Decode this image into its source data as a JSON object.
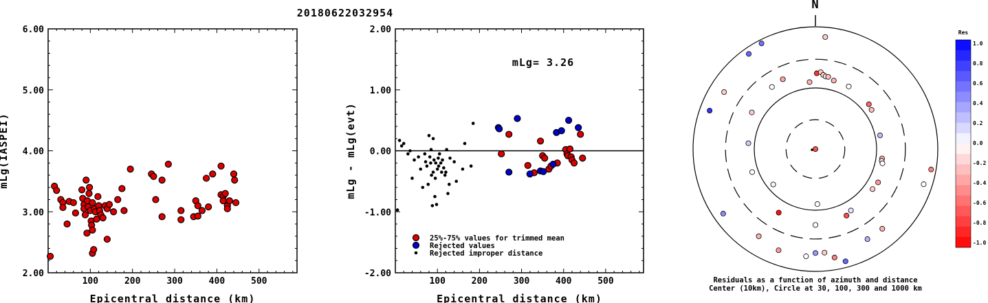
{
  "chart_data": [
    {
      "type": "scatter",
      "title": "20180622032954",
      "xlabel": "Epicentral distance (km)",
      "ylabel": "mLg(IASPEI)",
      "xlim": [
        0,
        590
      ],
      "ylim": [
        2.0,
        6.0
      ],
      "xticks": [
        "100",
        "200",
        "300",
        "500"
      ],
      "xtick_values": [
        100,
        200,
        300,
        500
      ],
      "xticks_all": [
        "100",
        "200",
        "300",
        "400",
        "500"
      ],
      "yticks": [
        "2.00",
        "3.00",
        "4.00",
        "5.00",
        "6.00"
      ],
      "points": [
        [
          5,
          2.27
        ],
        [
          15,
          3.42
        ],
        [
          20,
          3.35
        ],
        [
          30,
          3.2
        ],
        [
          35,
          3.15
        ],
        [
          35,
          3.07
        ],
        [
          45,
          2.8
        ],
        [
          50,
          3.17
        ],
        [
          60,
          3.15
        ],
        [
          65,
          2.98
        ],
        [
          80,
          3.36
        ],
        [
          82,
          3.22
        ],
        [
          85,
          3.12
        ],
        [
          85,
          3.05
        ],
        [
          88,
          2.95
        ],
        [
          90,
          3.52
        ],
        [
          92,
          2.65
        ],
        [
          93,
          3.18
        ],
        [
          95,
          3.08
        ],
        [
          97,
          3.3
        ],
        [
          98,
          3.4
        ],
        [
          100,
          3.02
        ],
        [
          102,
          2.85
        ],
        [
          103,
          2.78
        ],
        [
          105,
          2.32
        ],
        [
          105,
          2.7
        ],
        [
          105,
          3.15
        ],
        [
          108,
          2.38
        ],
        [
          110,
          3.05
        ],
        [
          112,
          3.0
        ],
        [
          115,
          2.88
        ],
        [
          118,
          3.25
        ],
        [
          120,
          3.1
        ],
        [
          122,
          3.02
        ],
        [
          125,
          2.95
        ],
        [
          130,
          2.9
        ],
        [
          135,
          3.1
        ],
        [
          140,
          3.05
        ],
        [
          140,
          2.55
        ],
        [
          145,
          3.12
        ],
        [
          155,
          3.0
        ],
        [
          165,
          3.2
        ],
        [
          175,
          3.38
        ],
        [
          180,
          3.02
        ],
        [
          195,
          3.7
        ],
        [
          245,
          3.62
        ],
        [
          250,
          3.58
        ],
        [
          255,
          3.2
        ],
        [
          270,
          2.92
        ],
        [
          270,
          3.52
        ],
        [
          285,
          3.78
        ],
        [
          315,
          3.02
        ],
        [
          315,
          2.87
        ],
        [
          345,
          2.92
        ],
        [
          350,
          3.18
        ],
        [
          355,
          3.1
        ],
        [
          355,
          2.93
        ],
        [
          365,
          3.02
        ],
        [
          375,
          3.55
        ],
        [
          380,
          3.08
        ],
        [
          390,
          3.62
        ],
        [
          410,
          3.75
        ],
        [
          410,
          3.28
        ],
        [
          415,
          3.25
        ],
        [
          415,
          3.18
        ],
        [
          420,
          3.3
        ],
        [
          425,
          3.1
        ],
        [
          425,
          3.05
        ],
        [
          430,
          3.18
        ],
        [
          440,
          3.62
        ],
        [
          442,
          3.52
        ],
        [
          445,
          3.15
        ]
      ]
    },
    {
      "type": "scatter",
      "xlabel": "Epicentral distance (km)",
      "ylabel": "mLg - mLg(evt)",
      "xlim": [
        0,
        590
      ],
      "ylim": [
        -2.0,
        2.0
      ],
      "xticks": [
        "100",
        "200",
        "300",
        "400",
        "500"
      ],
      "yticks": [
        "-2.00",
        "-1.00",
        "0.00",
        "1.00",
        "2.00"
      ],
      "annotation": "mLg= 3.26",
      "legend": [
        "25%-75% values for trimmed mean",
        "Rejected values",
        "Rejected improper distance"
      ],
      "colors": {
        "trimmed": "#dd0000",
        "rejected": "#0000cc",
        "improper": "#000000"
      },
      "series": [
        {
          "name": "25%-75% values for trimmed mean",
          "points": [
            [
              252,
              -0.05
            ],
            [
              270,
              0.27
            ],
            [
              315,
              -0.24
            ],
            [
              330,
              -0.36
            ],
            [
              345,
              0.16
            ],
            [
              350,
              -0.08
            ],
            [
              355,
              -0.12
            ],
            [
              365,
              -0.3
            ],
            [
              370,
              -0.25
            ],
            [
              385,
              -0.2
            ],
            [
              405,
              0.02
            ],
            [
              408,
              -0.05
            ],
            [
              410,
              -0.08
            ],
            [
              415,
              0.03
            ],
            [
              418,
              -0.1
            ],
            [
              420,
              -0.15
            ],
            [
              425,
              -0.2
            ],
            [
              440,
              0.27
            ],
            [
              445,
              -0.12
            ]
          ]
        },
        {
          "name": "Rejected values",
          "points": [
            [
              245,
              0.38
            ],
            [
              247,
              0.36
            ],
            [
              270,
              -0.35
            ],
            [
              290,
              0.53
            ],
            [
              320,
              -0.38
            ],
            [
              345,
              -0.33
            ],
            [
              352,
              -0.34
            ],
            [
              375,
              -0.22
            ],
            [
              383,
              0.3
            ],
            [
              395,
              0.33
            ],
            [
              412,
              0.5
            ],
            [
              435,
              0.38
            ]
          ]
        },
        {
          "name": "Rejected improper distance",
          "points": [
            [
              5,
              -0.97
            ],
            [
              10,
              0.17
            ],
            [
              15,
              0.08
            ],
            [
              20,
              0.12
            ],
            [
              30,
              -0.05
            ],
            [
              35,
              0.0
            ],
            [
              40,
              -0.45
            ],
            [
              45,
              -0.15
            ],
            [
              55,
              -0.1
            ],
            [
              60,
              -0.3
            ],
            [
              65,
              -0.6
            ],
            [
              70,
              -0.05
            ],
            [
              72,
              -0.18
            ],
            [
              75,
              -0.25
            ],
            [
              78,
              -0.55
            ],
            [
              80,
              0.25
            ],
            [
              82,
              -0.1
            ],
            [
              84,
              -0.2
            ],
            [
              85,
              0.02
            ],
            [
              86,
              -0.4
            ],
            [
              88,
              -0.9
            ],
            [
              90,
              0.2
            ],
            [
              90,
              -0.35
            ],
            [
              92,
              -0.15
            ],
            [
              94,
              -0.75
            ],
            [
              95,
              -0.45
            ],
            [
              96,
              -0.2
            ],
            [
              98,
              -0.88
            ],
            [
              100,
              -0.3
            ],
            [
              102,
              -0.12
            ],
            [
              103,
              -0.25
            ],
            [
              105,
              -0.05
            ],
            [
              108,
              -0.2
            ],
            [
              110,
              -0.35
            ],
            [
              112,
              -0.15
            ],
            [
              115,
              -0.28
            ],
            [
              118,
              -0.4
            ],
            [
              120,
              -0.35
            ],
            [
              122,
              0.02
            ],
            [
              125,
              -0.7
            ],
            [
              128,
              -0.55
            ],
            [
              130,
              -0.12
            ],
            [
              140,
              -0.18
            ],
            [
              145,
              -0.5
            ],
            [
              160,
              -0.3
            ],
            [
              165,
              0.12
            ],
            [
              185,
              0.45
            ],
            [
              180,
              -0.25
            ]
          ]
        }
      ]
    },
    {
      "type": "polar-scatter",
      "north_label": "N",
      "caption_line1": "Residuals as a function of azimuth and distance",
      "caption_line2": "Center (10km), Circle at 30, 100, 300 and 1000 km",
      "colorbar_title": "Res",
      "colorbar_labels": [
        "1.0",
        "0.8",
        "0.6",
        "0.4",
        "0.2",
        "0.0",
        "-0.2",
        "-0.4",
        "-0.6",
        "-0.8",
        "-1.0"
      ],
      "points": [
        {
          "r": 0.0,
          "az": 0,
          "res": -0.7
        },
        {
          "r": 0.45,
          "az": 178,
          "res": 0.0
        },
        {
          "r": 0.45,
          "az": 230,
          "res": -0.05
        },
        {
          "r": 0.55,
          "az": 355,
          "res": -0.3
        },
        {
          "r": 0.62,
          "az": 1,
          "res": -0.8
        },
        {
          "r": 0.63,
          "az": 4,
          "res": -0.2
        },
        {
          "r": 0.61,
          "az": 6,
          "res": -0.2
        },
        {
          "r": 0.6,
          "az": 8,
          "res": -0.1
        },
        {
          "r": 0.6,
          "az": 10,
          "res": -0.25
        },
        {
          "r": 0.58,
          "az": 15,
          "res": -0.3
        },
        {
          "r": 0.58,
          "az": 28,
          "res": 0.0
        },
        {
          "r": 0.57,
          "az": 50,
          "res": -0.6
        },
        {
          "r": 0.56,
          "az": 55,
          "res": -0.25
        },
        {
          "r": 0.54,
          "az": 78,
          "res": 0.25
        },
        {
          "r": 0.55,
          "az": 98,
          "res": -0.3
        },
        {
          "r": 0.55,
          "az": 100,
          "res": -0.2
        },
        {
          "r": 0.56,
          "az": 102,
          "res": 0.0
        },
        {
          "r": 0.58,
          "az": 118,
          "res": -0.4
        },
        {
          "r": 0.57,
          "az": 125,
          "res": -0.2
        },
        {
          "r": 0.6,
          "az": 155,
          "res": -0.7
        },
        {
          "r": 0.58,
          "az": 150,
          "res": 0.1
        },
        {
          "r": 0.62,
          "az": 180,
          "res": 0.0
        },
        {
          "r": 0.6,
          "az": 210,
          "res": -0.95
        },
        {
          "r": 0.55,
          "az": 250,
          "res": 0.0
        },
        {
          "r": 0.55,
          "az": 275,
          "res": 0.2
        },
        {
          "r": 0.6,
          "az": 300,
          "res": -0.2
        },
        {
          "r": 0.62,
          "az": 325,
          "res": 0.0
        },
        {
          "r": 0.63,
          "az": 335,
          "res": -0.35
        },
        {
          "r": 0.85,
          "az": 140,
          "res": -0.3
        },
        {
          "r": 0.9,
          "az": 170,
          "res": -0.5
        },
        {
          "r": 0.85,
          "az": 175,
          "res": -0.2
        },
        {
          "r": 0.88,
          "az": 185,
          "res": 0.0
        },
        {
          "r": 0.85,
          "az": 180,
          "res": 0.4
        },
        {
          "r": 0.95,
          "az": 165,
          "res": 0.6
        },
        {
          "r": 0.85,
          "az": 150,
          "res": 0.3
        },
        {
          "r": 0.88,
          "az": 200,
          "res": -0.4
        },
        {
          "r": 0.85,
          "az": 213,
          "res": -0.3
        },
        {
          "r": 0.92,
          "az": 235,
          "res": 0.45
        },
        {
          "r": 0.92,
          "az": 290,
          "res": 0.8
        },
        {
          "r": 0.88,
          "az": 302,
          "res": -0.2
        },
        {
          "r": 0.95,
          "az": 325,
          "res": 0.6
        },
        {
          "r": 0.97,
          "az": 333,
          "res": 0.55
        },
        {
          "r": 0.92,
          "az": 5,
          "res": -0.2
        },
        {
          "r": 0.96,
          "az": 100,
          "res": -0.5
        },
        {
          "r": 0.93,
          "az": 108,
          "res": 0.0
        }
      ]
    }
  ]
}
